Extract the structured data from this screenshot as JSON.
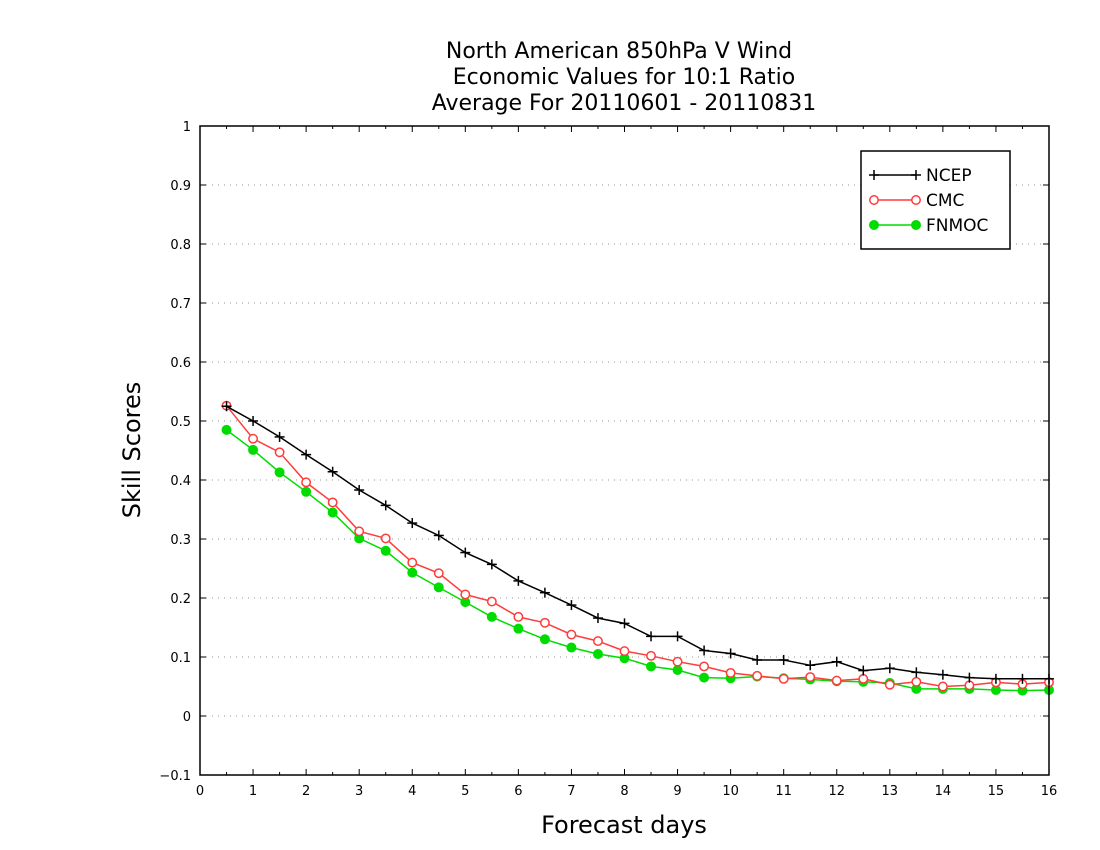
{
  "chart_data": {
    "type": "line",
    "title_lines": [
      "North American 850hPa V Wind",
      "Economic Values for 10:1 Ratio",
      "Average For 20110601 - 20110831"
    ],
    "xlabel": "Forecast days",
    "ylabel": "Skill Scores",
    "xlim": [
      0,
      16
    ],
    "ylim": [
      -0.1,
      1
    ],
    "xticks": [
      "0",
      "1",
      "2",
      "3",
      "4",
      "5",
      "6",
      "7",
      "8",
      "9",
      "10",
      "11",
      "12",
      "13",
      "14",
      "15",
      "16"
    ],
    "yticks": [
      "−0.1",
      "0",
      "0.1",
      "0.2",
      "0.3",
      "0.4",
      "0.5",
      "0.6",
      "0.7",
      "0.8",
      "0.9",
      "1"
    ],
    "grid": true,
    "legend_position": "top-right",
    "x": [
      0.5,
      1,
      1.5,
      2,
      2.5,
      3,
      3.5,
      4,
      4.5,
      5,
      5.5,
      6,
      6.5,
      7,
      7.5,
      8,
      8.5,
      9,
      9.5,
      10,
      10.5,
      11,
      11.5,
      12,
      12.5,
      13,
      13.5,
      14,
      14.5,
      15,
      15.5,
      16
    ],
    "series": [
      {
        "name": "NCEP",
        "color": "#000000",
        "marker": "plus",
        "values": [
          0.525,
          0.5,
          0.473,
          0.443,
          0.414,
          0.383,
          0.357,
          0.327,
          0.306,
          0.277,
          0.257,
          0.229,
          0.209,
          0.188,
          0.166,
          0.157,
          0.135,
          0.135,
          0.111,
          0.106,
          0.095,
          0.095,
          0.086,
          0.092,
          0.077,
          0.081,
          0.074,
          0.07,
          0.065,
          0.063,
          0.063,
          0.063
        ]
      },
      {
        "name": "CMC",
        "color": "#ff3c3c",
        "marker": "open-circle",
        "values": [
          0.526,
          0.47,
          0.447,
          0.396,
          0.362,
          0.313,
          0.301,
          0.26,
          0.242,
          0.206,
          0.194,
          0.168,
          0.158,
          0.138,
          0.127,
          0.11,
          0.102,
          0.092,
          0.084,
          0.073,
          0.068,
          0.063,
          0.066,
          0.06,
          0.063,
          0.053,
          0.058,
          0.05,
          0.052,
          0.057,
          0.054,
          0.057
        ]
      },
      {
        "name": "FNMOC",
        "color": "#00dc00",
        "marker": "filled-circle",
        "values": [
          0.485,
          0.451,
          0.413,
          0.38,
          0.345,
          0.301,
          0.28,
          0.243,
          0.218,
          0.193,
          0.168,
          0.148,
          0.13,
          0.116,
          0.105,
          0.098,
          0.084,
          0.078,
          0.065,
          0.064,
          0.067,
          0.064,
          0.062,
          0.059,
          0.058,
          0.056,
          0.046,
          0.046,
          0.046,
          0.044,
          0.043,
          0.044
        ]
      }
    ]
  }
}
